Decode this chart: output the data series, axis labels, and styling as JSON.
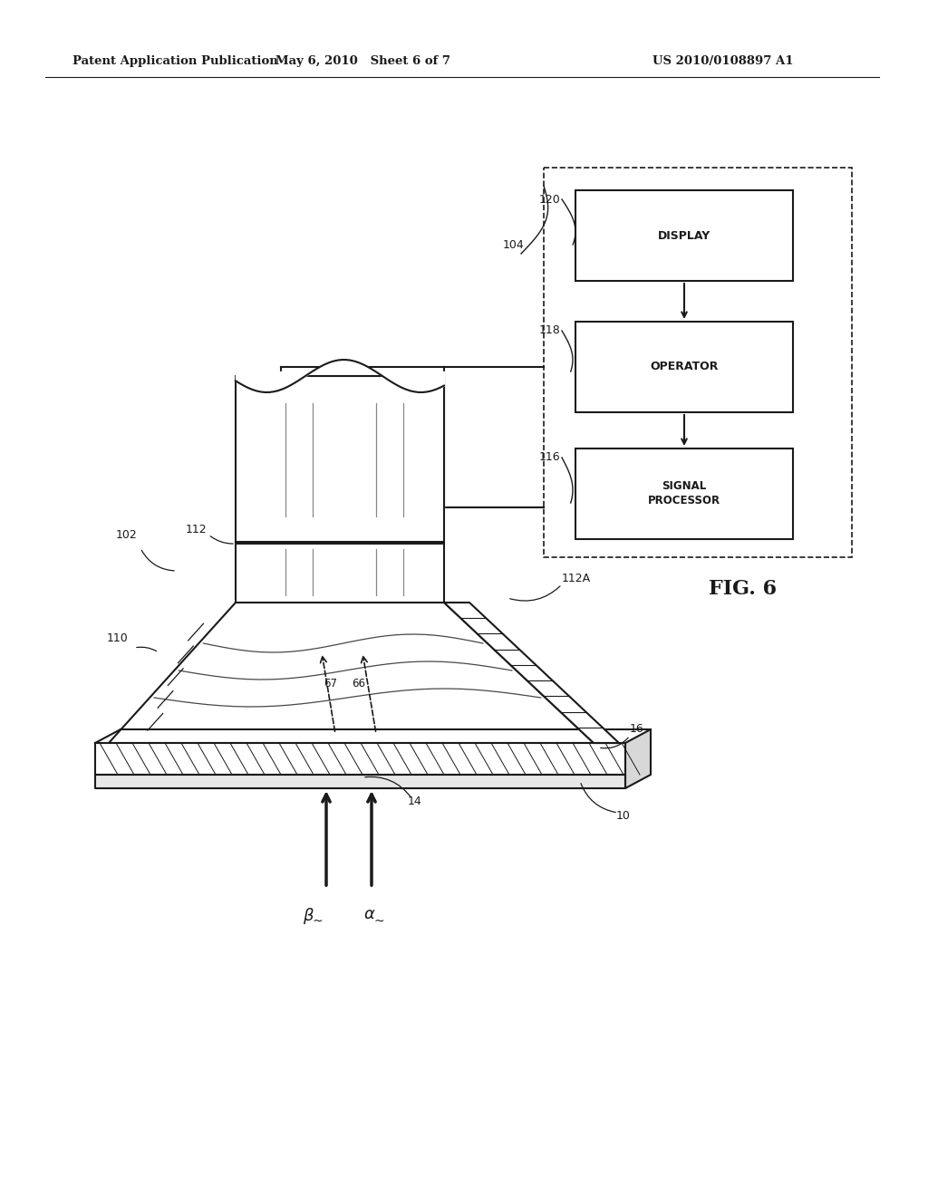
{
  "background_color": "#ffffff",
  "title_left": "Patent Application Publication",
  "title_mid": "May 6, 2010   Sheet 6 of 7",
  "title_right": "US 2010/0108897 A1",
  "fig_label": "FIG. 6",
  "line_color": "#1a1a1a"
}
